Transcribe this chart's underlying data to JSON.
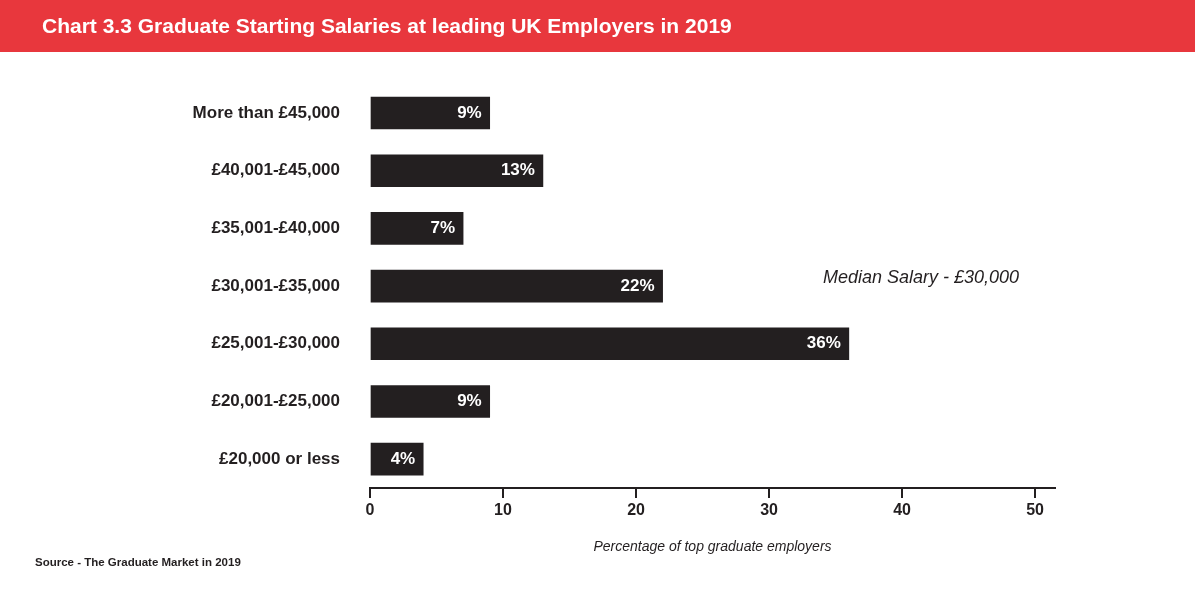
{
  "chart_data": {
    "type": "bar",
    "orientation": "horizontal",
    "title": "Chart 3.3 Graduate Starting Salaries at leading UK Employers in 2019",
    "categories": [
      "More than £45,000",
      "£40,001-£45,000",
      "£35,001-£40,000",
      "£30,001-£35,000",
      "£25,001-£30,000",
      "£20,001-£25,000",
      "£20,000 or less"
    ],
    "values": [
      9,
      13,
      7,
      22,
      36,
      9,
      4
    ],
    "value_labels": [
      "9%",
      "13%",
      "7%",
      "22%",
      "36%",
      "9%",
      "4%"
    ],
    "color": "#231f20",
    "xlabel": "Percentage of top graduate employers",
    "xlim": [
      0,
      51.5
    ],
    "xticks": [
      0,
      10,
      20,
      30,
      40,
      50
    ],
    "grid": false,
    "legend": false,
    "annotations": [
      "Median Salary - £30,000",
      "Source - The Graduate Market in 2019"
    ]
  }
}
